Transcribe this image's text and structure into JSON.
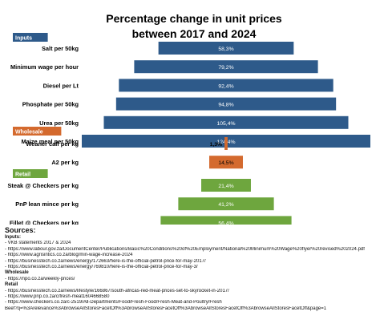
{
  "chart_data": {
    "type": "bar",
    "orientation": "horizontal",
    "layout": "centered-funnel",
    "title_lines": [
      "Percentage change in unit prices",
      "between 2017 and 2024"
    ],
    "groups": [
      {
        "name": "Inputs",
        "color": "#2e5a8a",
        "label_color": "#ffffff",
        "items": [
          {
            "label": "Salt per 50kg",
            "value": 58.3,
            "display": "58,3%"
          },
          {
            "label": "Minimum wage per hour",
            "value": 79.2,
            "display": "79,2%"
          },
          {
            "label": "Diesel per Lt",
            "value": 92.4,
            "display": "92,4%"
          },
          {
            "label": "Phosphate per 50kg",
            "value": 94.8,
            "display": "94,8%"
          },
          {
            "label": "Urea per 50kg",
            "value": 105.4,
            "display": "105,4%"
          },
          {
            "label": "Maize meal per 50kg",
            "value": 124.4,
            "display": "124,4%"
          }
        ]
      },
      {
        "name": "Wholesale",
        "color": "#d46a2e",
        "label_color": "#000000",
        "items": [
          {
            "label": "Weaner calf per kg",
            "value": 1.3,
            "display": "1,3%"
          },
          {
            "label": "A2 per kg",
            "value": 14.5,
            "display": "14,5%"
          }
        ]
      },
      {
        "name": "Retail",
        "color": "#6ea63e",
        "label_color": "#ffffff",
        "items": [
          {
            "label": "Steak @ Checkers per kg",
            "value": 21.4,
            "display": "21,4%"
          },
          {
            "label": "PnP lean mince per kg",
            "value": 41.2,
            "display": "41,2%"
          },
          {
            "label": "Fillet @ Checkers per kg",
            "value": 56.4,
            "display": "56,4%"
          }
        ]
      }
    ],
    "xlim": [
      0,
      124.4
    ],
    "grid": false,
    "legend": "none"
  },
  "sources": {
    "heading": "Sources:",
    "groups": [
      {
        "name": "Inputs:",
        "lines": [
          "- VKB statements 2017 & 2024",
          "- https://www.labour.gov.za/DocumentCenter/Publications/Basic%20Conditions%20of%20Employment/National%20Minimum%20Wage%20flyer%20revised%202024.pdf",
          "- https://www.agrisintics.co.za/blog/min-wage-increase-2024",
          "- https://businesstech.co.za/news/energy/172663/here-is-the-official-petrol-price-for-may-2017/",
          "- https://businesstech.co.za/news/energy/769810/here-is-the-official-petrol-price-for-may-3/"
        ]
      },
      {
        "name": "Wholesale",
        "lines": [
          "- https://npo.co.za/weekly-prices/"
        ]
      },
      {
        "name": "Retail",
        "lines": [
          "- https://businesstech.co.za/news/lifestyle/166867/south-africas-red-meat-prices-set-to-skyrocket-in-2017/",
          "- https://www.pnp.co.za/c/fresh-meat1604668580",
          "- https://www.checkers.co.za/c-2519/All-Departments/Food/Fresh-Food/Fresh-Meat-and-Poultry/Fresh",
          "Beef?q=%3Arelevance%3AbrowseAllStoresFacetOff%3AbrowseAllStoresFacetOff%3AbrowseAllStoresFacetOff%3AbrowseAllStoresFacetOff&page=1"
        ]
      }
    ]
  }
}
